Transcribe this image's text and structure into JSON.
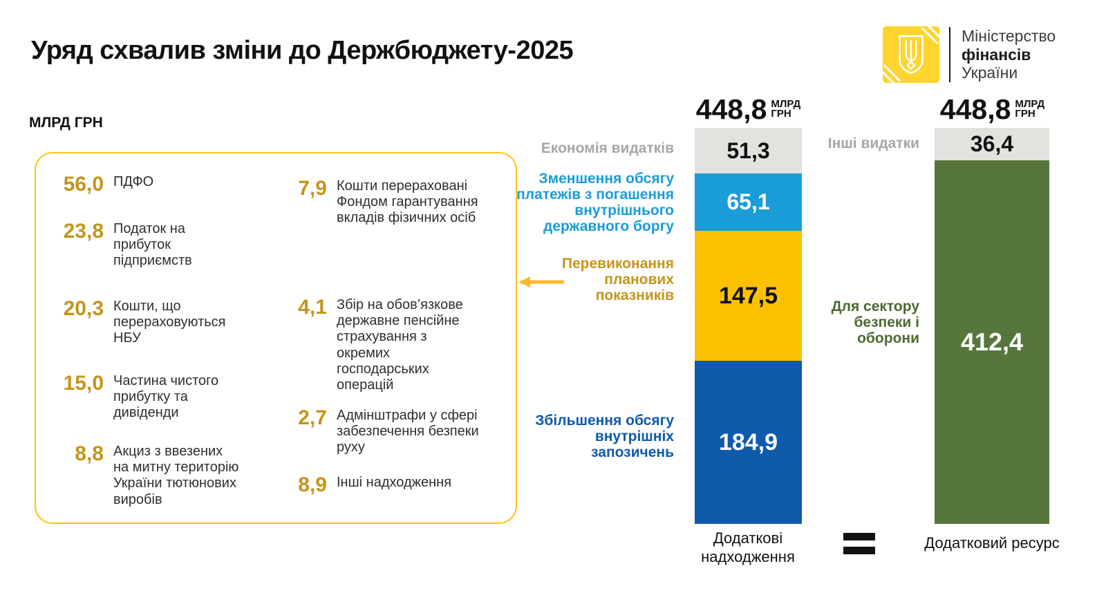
{
  "header": {
    "title": "Уряд схвалив зміни до Держбюджету-2025",
    "logo": {
      "line1": "Міністерство",
      "line2": "фінансів",
      "line3": "України"
    }
  },
  "unit_label": "МЛРД ГРН",
  "panel": {
    "items": [
      {
        "value": "56,0",
        "label": "ПДФО"
      },
      {
        "value": "23,8",
        "label": "Податок на прибуток підприємств"
      },
      {
        "value": "20,3",
        "label": "Кошти, що перераховуються НБУ"
      },
      {
        "value": "15,0",
        "label": "Частина чистого прибутку та дивіденди"
      },
      {
        "value": "8,8",
        "label": "Акциз з ввезених на митну територію України тютюнових виробів"
      },
      {
        "value": "7,9",
        "label": "Кошти перераховані Фондом гарантування вкладів фізичних осіб"
      },
      {
        "value": "4,1",
        "label": "Збір на обов’язкове державне пенсійне страхування з окремих господарських операцій"
      },
      {
        "value": "2,7",
        "label": "Адмінштрафи у сфері забезпечення безпеки руху"
      },
      {
        "value": "8,9",
        "label": "Інші надходження"
      }
    ]
  },
  "chart_data": {
    "type": "bar",
    "title": "Уряд схвалив зміни до Держбюджету-2025",
    "unit": "МЛРД ГРН",
    "axis_max": 448.8,
    "legend_position": "left-of-bars",
    "grid": false,
    "equals_sign": "=",
    "bars": [
      {
        "total_display": "448,8",
        "total_value": 448.8,
        "total_unit": "МЛРД\nГРН",
        "footer": "Додаткові\nнадходження",
        "segments": [
          {
            "name": "Економія видатків",
            "value": 51.3,
            "display": "51,3",
            "color": "#e2e2df",
            "text_color": "#111111",
            "label": "Економія видатків",
            "label_color": "#a6a6a6"
          },
          {
            "name": "Зменшення обсягу платежів з погашення внутрішнього державного боргу",
            "value": 65.1,
            "display": "65,1",
            "color": "#1a9cd8",
            "text_color": "#ffffff",
            "label": "Зменшення обсягу\nплатежів з погашення\nвнутрішнього\nдержавного боргу",
            "label_color": "#1a9cd8"
          },
          {
            "name": "Перевиконання планових показників",
            "value": 147.5,
            "display": "147,5",
            "color": "#fdc101",
            "text_color": "#111111",
            "label": "Перевиконання\nпланових\nпоказників",
            "label_color": "#c6941b"
          },
          {
            "name": "Збільшення обсягу внутрішніх запозичень",
            "value": 184.9,
            "display": "184,9",
            "color": "#0e5aab",
            "text_color": "#ffffff",
            "label": "Збільшення обсягу\nвнутрішніх\nзапозичень",
            "label_color": "#0e5aab"
          }
        ]
      },
      {
        "total_display": "448,8",
        "total_value": 448.8,
        "total_unit": "МЛРД\nГРН",
        "footer": "Додатковий ресурс",
        "segments": [
          {
            "name": "Інші видатки",
            "value": 36.4,
            "display": "36,4",
            "color": "#e2e2df",
            "text_color": "#111111",
            "label": "Інші видатки",
            "label_color": "#a6a6a6"
          },
          {
            "name": "Для сектору безпеки і оборони",
            "value": 412.4,
            "display": "412,4",
            "color": "#57763b",
            "text_color": "#ffffff",
            "label": "Для сектору\nбезпеки і\nоборони",
            "label_color": "#4c6a30"
          }
        ]
      }
    ]
  }
}
